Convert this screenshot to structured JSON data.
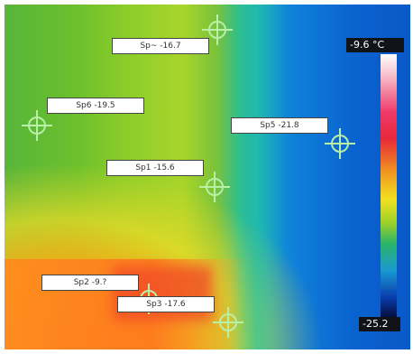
{
  "image": {
    "type": "thermal-camera-frame",
    "colors": {
      "cold": "#0a58c8",
      "cool": "#169fd0",
      "mid": "#8ccd2a",
      "warm": "#ffaa14",
      "hot": "#ff7814",
      "label_bg": "#ffffff",
      "scale_box": "#101418"
    }
  },
  "scale": {
    "max": "-9.6 °C",
    "min": "-25.2"
  },
  "spots": [
    {
      "id": "sp-top",
      "text": "Sp~ -16.7"
    },
    {
      "id": "sp-left",
      "text": "Sp6 -19.5"
    },
    {
      "id": "sp-right",
      "text": "Sp5 -21.8"
    },
    {
      "id": "sp-center",
      "text": "Sp1 -15.6"
    },
    {
      "id": "sp-bottom-left",
      "text": "Sp2 -9.?"
    },
    {
      "id": "sp-bottom",
      "text": "Sp3 -17.6"
    }
  ]
}
